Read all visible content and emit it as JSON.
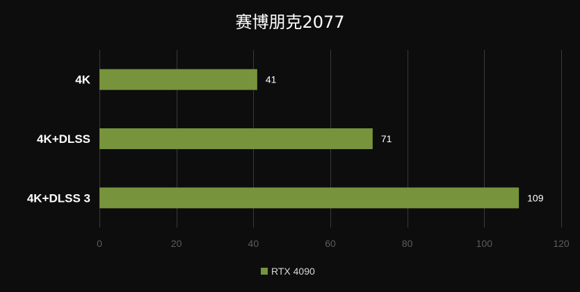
{
  "chart_data": {
    "type": "bar",
    "orientation": "horizontal",
    "title": "赛博朋克2077",
    "categories": [
      "4K",
      "4K+DLSS",
      "4K+DLSS 3"
    ],
    "series": [
      {
        "name": "RTX 4090",
        "values": [
          41,
          71,
          109
        ],
        "color": "#77933c"
      }
    ],
    "xlim": [
      0,
      120
    ],
    "xticks": [
      0,
      20,
      40,
      60,
      80,
      100,
      120
    ],
    "grid": true,
    "legend": "bottom",
    "background": "#0d0d0d"
  }
}
